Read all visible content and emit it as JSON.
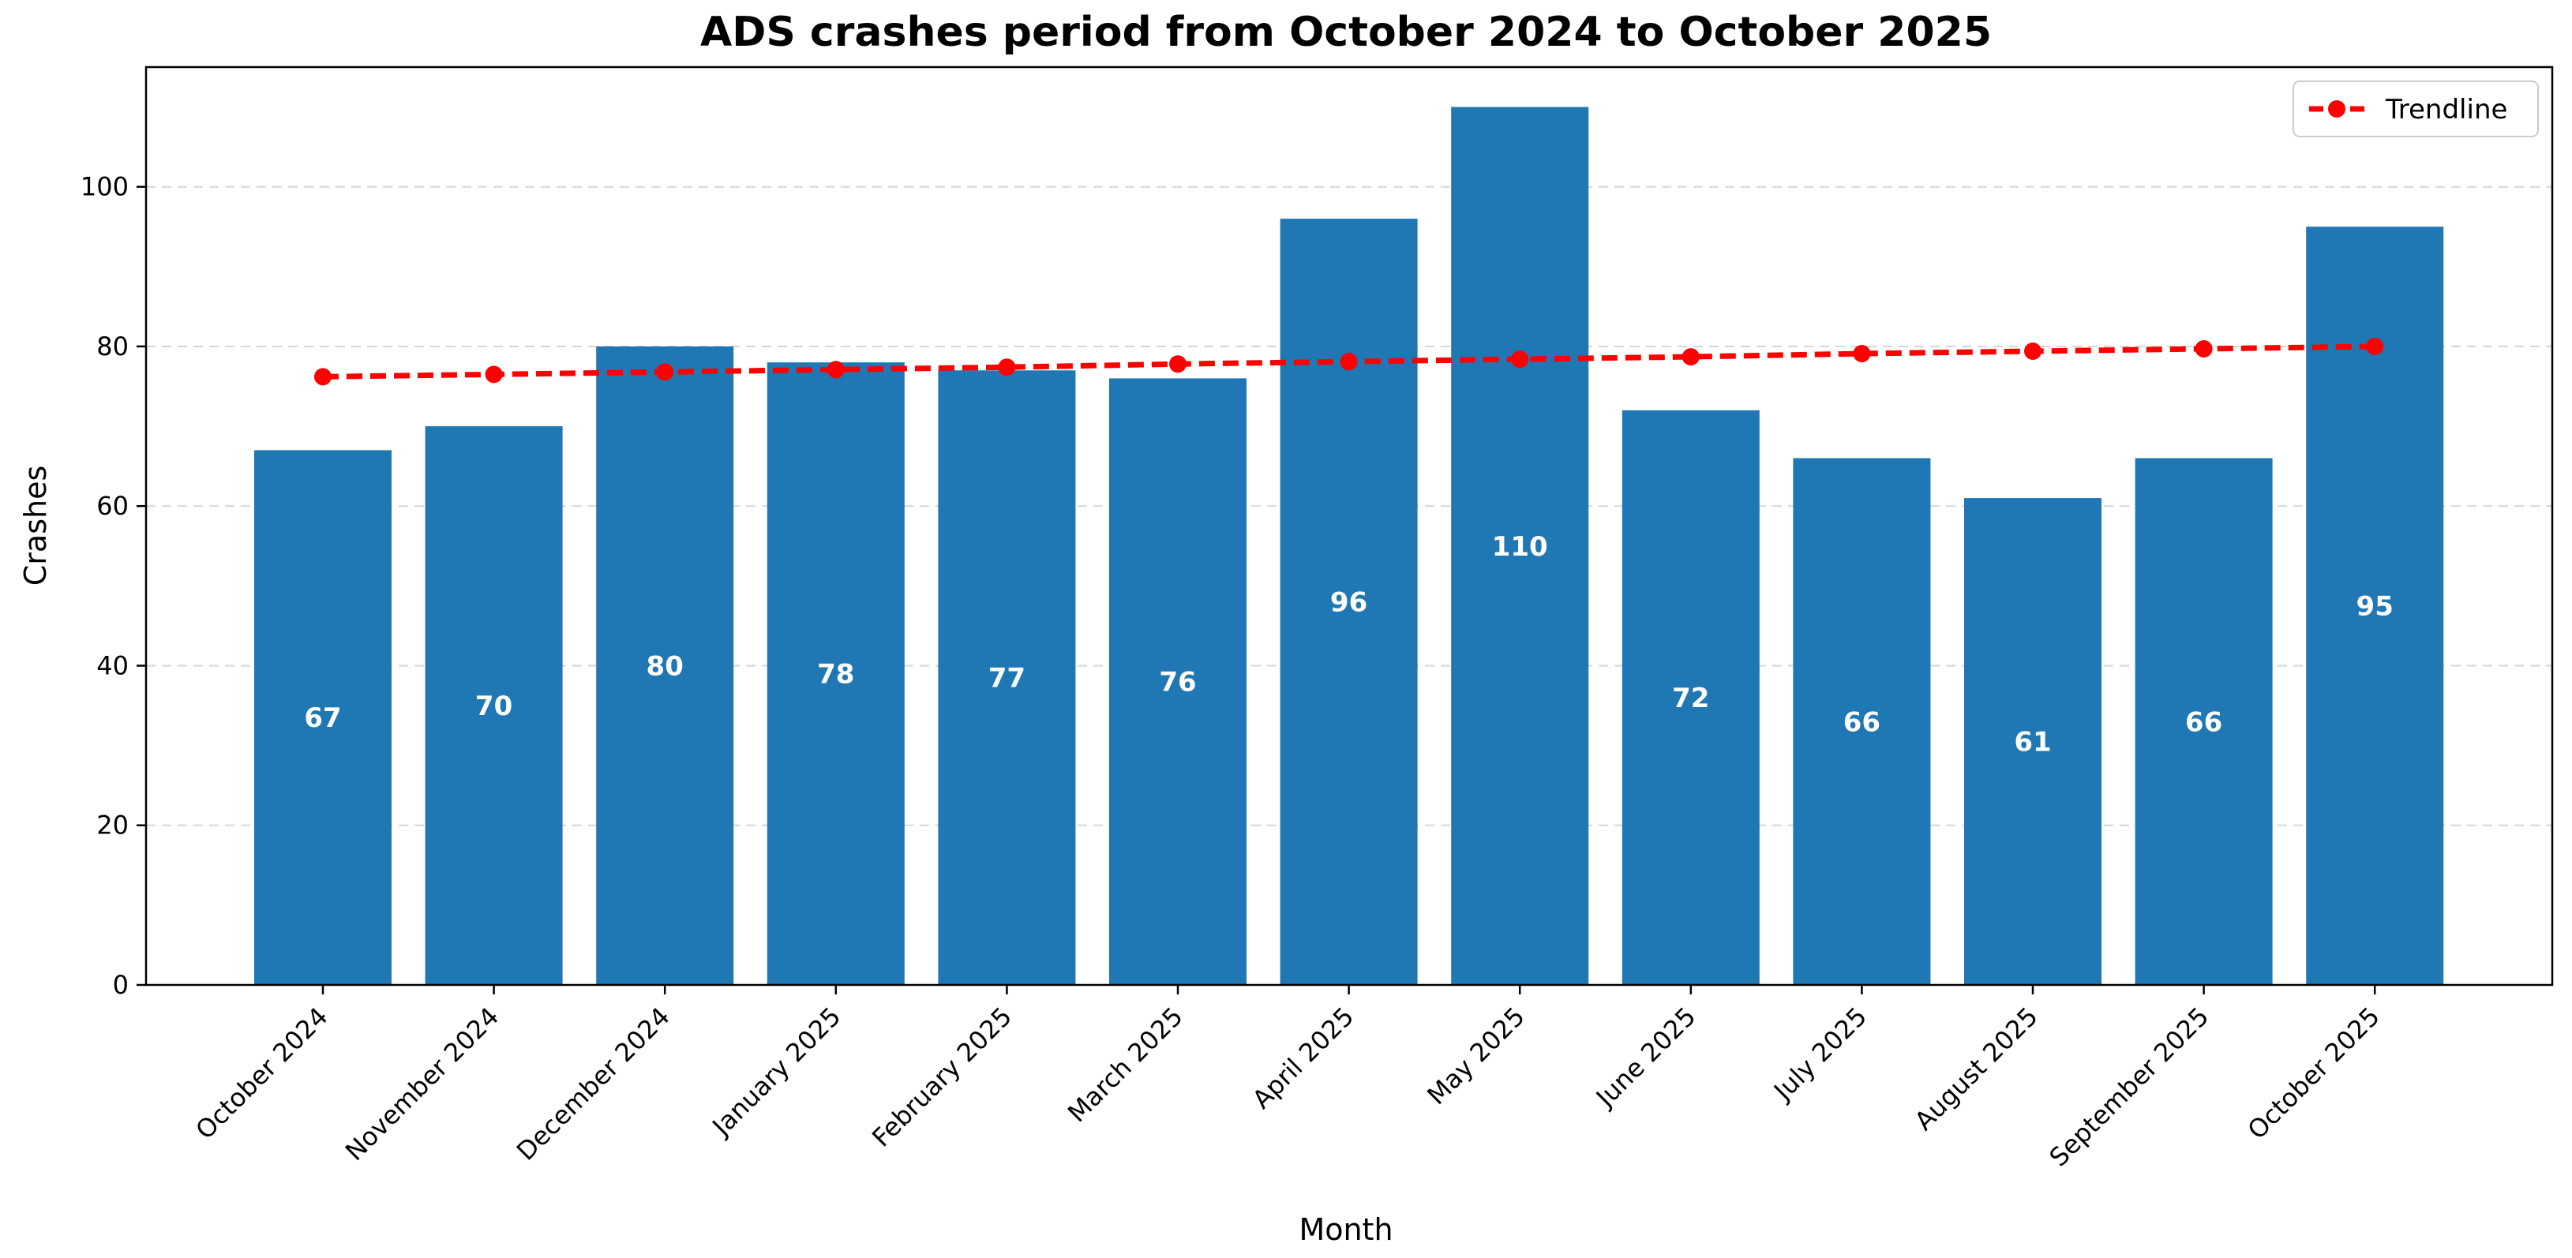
{
  "chart_data": {
    "type": "bar",
    "title": "ADS crashes period from October 2024 to October 2025",
    "xlabel": "Month",
    "ylabel": "Crashes",
    "ylim": [
      0,
      115
    ],
    "yticks": [
      0,
      20,
      40,
      60,
      80,
      100
    ],
    "grid": "horizontal dashed",
    "legend_position": "top-right",
    "categories": [
      "October 2024",
      "November 2024",
      "December 2024",
      "January 2025",
      "February 2025",
      "March 2025",
      "April 2025",
      "May 2025",
      "June 2025",
      "July 2025",
      "August 2025",
      "September 2025",
      "October 2025"
    ],
    "series": [
      {
        "type": "bar",
        "values": [
          67,
          70,
          80,
          78,
          77,
          76,
          96,
          110,
          72,
          66,
          61,
          66,
          95
        ],
        "color": "#1f77b4"
      },
      {
        "type": "line",
        "name": "Trendline",
        "style": "dashed",
        "marker": "circle",
        "values": [
          76.2,
          76.5,
          76.8,
          77.1,
          77.4,
          77.8,
          78.1,
          78.4,
          78.7,
          79.1,
          79.4,
          79.7,
          80.0
        ],
        "color": "#ff0000"
      }
    ]
  }
}
